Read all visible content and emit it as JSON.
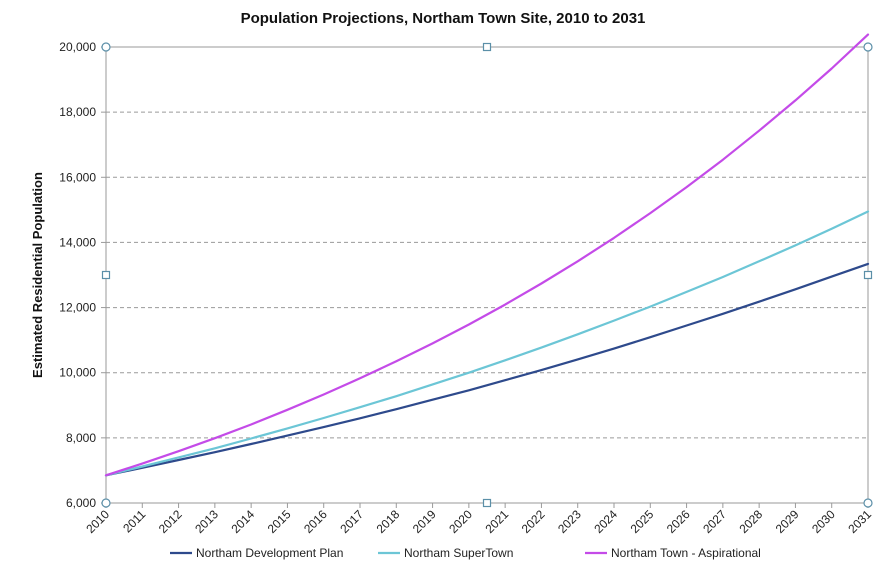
{
  "chart_data": {
    "type": "line",
    "title": "Population Projections, Northam Town Site, 2010 to 2031",
    "xlabel": "",
    "ylabel": "Estimated Residential Population",
    "x": [
      2010,
      2011,
      2012,
      2013,
      2014,
      2015,
      2016,
      2017,
      2018,
      2019,
      2020,
      2021,
      2022,
      2023,
      2024,
      2025,
      2026,
      2027,
      2028,
      2029,
      2030,
      2031
    ],
    "ylim": [
      6000,
      20000
    ],
    "yticks": [
      6000,
      8000,
      10000,
      12000,
      14000,
      16000,
      18000,
      20000
    ],
    "ytick_labels": [
      "6,000",
      "8,000",
      "10,000",
      "12,000",
      "14,000",
      "16,000",
      "18,000",
      "20,000"
    ],
    "grid": true,
    "legend_position": "bottom",
    "series": [
      {
        "name": "Northam Development Plan",
        "color": "#2e4a8c",
        "values": [
          6850,
          7080,
          7320,
          7560,
          7810,
          8070,
          8330,
          8600,
          8880,
          9170,
          9460,
          9770,
          10080,
          10410,
          10740,
          11090,
          11450,
          11810,
          12180,
          12560,
          12950,
          13340
        ]
      },
      {
        "name": "Northam SuperTown",
        "color": "#6cc6d6",
        "values": [
          6850,
          7120,
          7400,
          7680,
          7980,
          8290,
          8610,
          8940,
          9280,
          9640,
          10000,
          10380,
          10770,
          11180,
          11600,
          12030,
          12480,
          12940,
          13420,
          13910,
          14420,
          14950
        ]
      },
      {
        "name": "Northam Town - Aspirational",
        "color": "#c44be8",
        "values": [
          6850,
          7210,
          7590,
          7990,
          8410,
          8860,
          9330,
          9830,
          10350,
          10900,
          11480,
          12090,
          12740,
          13420,
          14140,
          14900,
          15700,
          16540,
          17430,
          18360,
          19340,
          20380
        ]
      }
    ]
  }
}
